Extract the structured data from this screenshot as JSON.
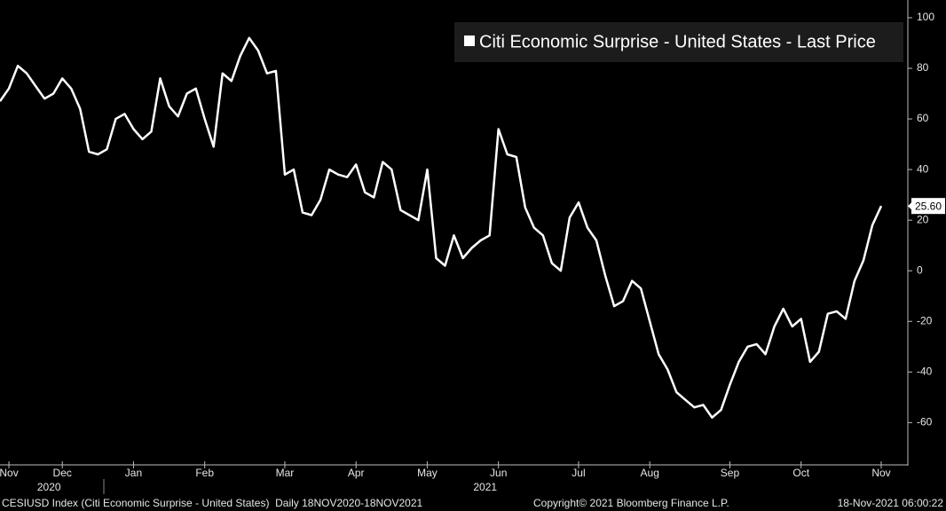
{
  "chart_data": {
    "type": "line",
    "categories": [
      null,
      "Nov",
      null,
      null,
      null,
      null,
      null,
      "Dec",
      null,
      null,
      null,
      null,
      null,
      null,
      null,
      "Jan",
      null,
      null,
      null,
      null,
      null,
      null,
      null,
      "Feb",
      null,
      null,
      null,
      null,
      null,
      null,
      null,
      null,
      "Mar",
      null,
      null,
      null,
      null,
      null,
      null,
      null,
      "Apr",
      null,
      null,
      null,
      null,
      null,
      null,
      null,
      "May",
      null,
      null,
      null,
      null,
      null,
      null,
      null,
      "Jun",
      null,
      null,
      null,
      null,
      null,
      null,
      null,
      null,
      "Jul",
      null,
      null,
      null,
      null,
      null,
      null,
      null,
      "Aug",
      null,
      null,
      null,
      null,
      null,
      null,
      null,
      null,
      "Sep",
      null,
      null,
      null,
      null,
      null,
      null,
      null,
      "Oct",
      null,
      null,
      null,
      null,
      null,
      null,
      null,
      null,
      "Nov"
    ],
    "category_years": [
      null,
      null,
      null,
      null,
      null,
      null,
      null,
      "2020",
      null,
      null,
      null,
      null,
      null,
      null,
      null,
      null,
      null,
      null,
      null,
      null,
      null,
      null,
      null,
      null,
      null,
      null,
      null,
      null,
      null,
      null,
      null,
      null,
      null,
      null,
      null,
      null,
      null,
      null,
      null,
      null,
      null,
      null,
      null,
      null,
      null,
      null,
      null,
      null,
      null,
      null,
      null,
      null,
      null,
      null,
      null,
      null,
      "2021",
      null,
      null,
      null,
      null,
      null,
      null,
      null,
      null,
      null,
      null,
      null,
      null,
      null,
      null,
      null,
      null,
      null,
      null,
      null,
      null,
      null,
      null,
      null,
      null,
      null,
      null,
      null,
      null,
      null,
      null,
      null,
      null,
      null,
      null,
      null,
      null,
      null,
      null,
      null,
      null,
      null,
      null,
      null
    ],
    "series": [
      {
        "name": "Citi Economic Surprise - United States - Last Price",
        "color": "#ffffff",
        "last_label": "25.60",
        "values": [
          67,
          72,
          81,
          78,
          73,
          68,
          70,
          76,
          72,
          64,
          47,
          46,
          48,
          60,
          62,
          56,
          52,
          55,
          76,
          65,
          61,
          70,
          72,
          60,
          49,
          78,
          75,
          85,
          92,
          87,
          78,
          79,
          38,
          40,
          23,
          22,
          28,
          40,
          38,
          37,
          42,
          31,
          29,
          43,
          40,
          24,
          22,
          20,
          40,
          5,
          2,
          14,
          5,
          9,
          12,
          14,
          56,
          46,
          45,
          25,
          17,
          14,
          3,
          0,
          21,
          27,
          17,
          12,
          -2,
          -14,
          -12,
          -4,
          -7,
          -20,
          -33,
          -39,
          -48,
          -51,
          -54,
          -53,
          -58,
          -55,
          -45,
          -36,
          -30,
          -29,
          -33,
          -22,
          -15,
          -22,
          -19,
          -36,
          -32,
          -17,
          -16,
          -19,
          -4,
          4,
          18,
          25.6
        ]
      }
    ],
    "ylim": [
      -76,
      107
    ],
    "yticks": [
      -60,
      -40,
      -20,
      0,
      20,
      40,
      60,
      80,
      100
    ],
    "legend": "upper right",
    "background": "#000000"
  },
  "footer": {
    "index": "CESIUSD Index (Citi Economic Surprise - United States)  Daily 18NOV2020-18NOV2021",
    "copyright": "Copyright© 2021 Bloomberg Finance L.P.",
    "timestamp": "18-Nov-2021 06:00:22"
  }
}
